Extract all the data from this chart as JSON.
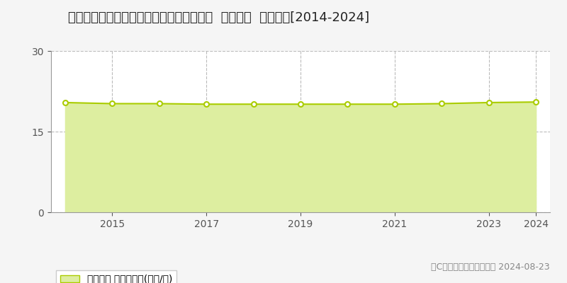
{
  "title": "長野県松本市村井町北２丁目７９８番１外  地価公示  地価推移[2014-2024]",
  "years": [
    2014,
    2015,
    2016,
    2017,
    2018,
    2019,
    2020,
    2021,
    2022,
    2023,
    2024
  ],
  "values": [
    20.4,
    20.2,
    20.2,
    20.1,
    20.1,
    20.1,
    20.1,
    20.1,
    20.2,
    20.4,
    20.5
  ],
  "ylim": [
    0,
    30
  ],
  "yticks": [
    0,
    15,
    30
  ],
  "line_color": "#aacc00",
  "fill_color": "#ddeea0",
  "marker_face_color": "#ffffff",
  "marker_edge_color": "#aacc00",
  "grid_color": "#bbbbbb",
  "background_color": "#f5f5f5",
  "plot_bg_color": "#ffffff",
  "legend_label": "地価公示 平均坪単価(万円/坪)",
  "copyright_text": "（C）土地価格ドットコム 2024-08-23",
  "xtick_years": [
    2015,
    2017,
    2019,
    2021,
    2023,
    2024
  ],
  "vgrid_years": [
    2015,
    2017,
    2019,
    2021,
    2023,
    2024
  ],
  "title_fontsize": 13,
  "tick_fontsize": 10,
  "legend_fontsize": 10,
  "copyright_fontsize": 9
}
